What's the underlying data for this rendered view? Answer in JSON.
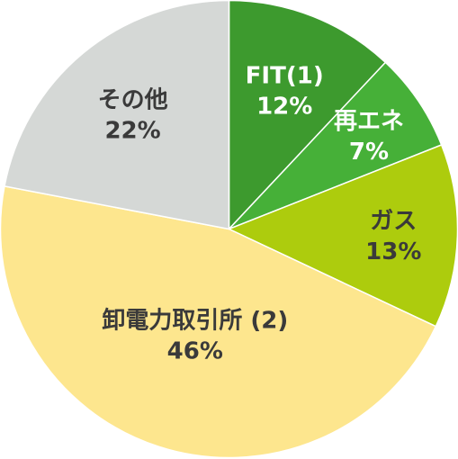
{
  "chart_data": {
    "type": "pie",
    "slices": [
      {
        "name": "FIT(1)",
        "value": 12,
        "label": "12%",
        "color": "#3d9a2e",
        "text_color": "#ffffff"
      },
      {
        "name": "再エネ",
        "value": 7,
        "label": "7%",
        "color": "#46b038",
        "text_color": "#ffffff"
      },
      {
        "name": "ガス",
        "value": 13,
        "label": "13%",
        "color": "#adcc0d",
        "text_color": "#3a3a3a"
      },
      {
        "name": "卸電力取引所 (2)",
        "value": 46,
        "label": "46%",
        "color": "#fde68e",
        "text_color": "#3a3a3a"
      },
      {
        "name": "その他",
        "value": 22,
        "label": "22%",
        "color": "#d5d8d6",
        "text_color": "#3a3a3a"
      }
    ],
    "start_angle": "12 o'clock",
    "direction": "clockwise",
    "legend": "none"
  }
}
